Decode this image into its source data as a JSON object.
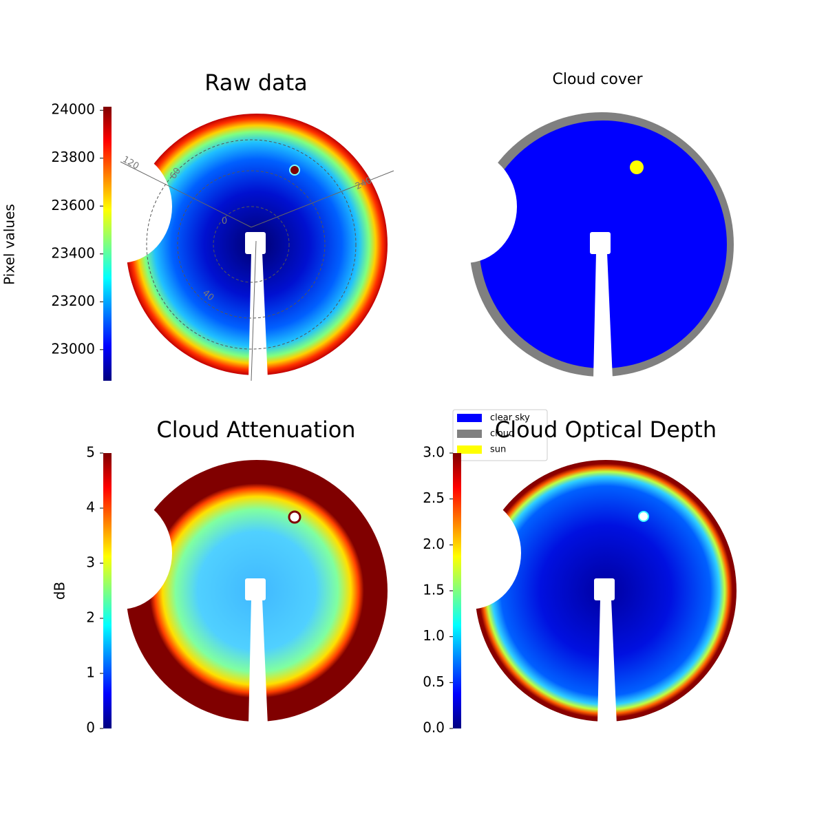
{
  "chart_data": [
    {
      "type": "image",
      "title": "Raw data",
      "colorbar_label": "Pixel values",
      "colormap": "jet",
      "clim": [
        22870,
        24015
      ],
      "cticks": [
        23000,
        23200,
        23400,
        23600,
        23800,
        24000
      ],
      "polar_labels": [
        "120",
        "60",
        "240",
        "0",
        "40"
      ]
    },
    {
      "type": "classes",
      "title": "Cloud cover",
      "classes": [
        {
          "name": "clear sky",
          "color": "#0000ff"
        },
        {
          "name": "cloud",
          "color": "#808080"
        },
        {
          "name": "sun",
          "color": "#ffff00"
        }
      ]
    },
    {
      "type": "image",
      "title": "Cloud Attenuation",
      "colorbar_label": "dB",
      "colormap": "jet",
      "clim": [
        0,
        5
      ],
      "cticks": [
        0,
        1,
        2,
        3,
        4,
        5
      ]
    },
    {
      "type": "image",
      "title": "Cloud Optical Depth",
      "colormap": "jet",
      "clim": [
        0,
        3
      ],
      "cticks": [
        {
          "value": 0,
          "label": "0.0"
        },
        0.5,
        {
          "value": 1,
          "label": "1.0"
        },
        1.5,
        {
          "value": 2,
          "label": "2.0"
        },
        2.5,
        {
          "value": 3,
          "label": "3.0"
        }
      ]
    }
  ]
}
